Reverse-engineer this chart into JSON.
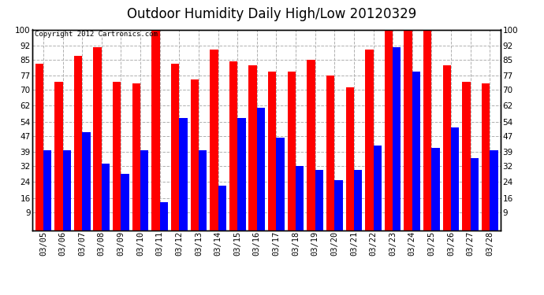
{
  "title": "Outdoor Humidity Daily High/Low 20120329",
  "copyright": "Copyright 2012 Cartronics.com",
  "dates": [
    "03/05",
    "03/06",
    "03/07",
    "03/08",
    "03/09",
    "03/10",
    "03/11",
    "03/12",
    "03/13",
    "03/14",
    "03/15",
    "03/16",
    "03/17",
    "03/18",
    "03/19",
    "03/20",
    "03/21",
    "03/22",
    "03/23",
    "03/24",
    "03/25",
    "03/26",
    "03/27",
    "03/28"
  ],
  "high": [
    83,
    74,
    87,
    91,
    74,
    73,
    100,
    83,
    75,
    90,
    84,
    82,
    79,
    79,
    85,
    77,
    71,
    90,
    100,
    100,
    100,
    82,
    74,
    73
  ],
  "low": [
    40,
    40,
    49,
    33,
    28,
    40,
    14,
    56,
    40,
    22,
    56,
    61,
    46,
    32,
    30,
    25,
    30,
    42,
    91,
    79,
    41,
    51,
    36,
    40
  ],
  "high_color": "#ff0000",
  "low_color": "#0000ff",
  "bg_color": "#ffffff",
  "plot_bg_color": "#ffffff",
  "grid_color": "#b0b0b0",
  "yticks": [
    9,
    16,
    24,
    32,
    39,
    47,
    54,
    62,
    70,
    77,
    85,
    92,
    100
  ],
  "ymin": 0,
  "ymax": 100,
  "title_fontsize": 12,
  "tick_fontsize": 7.5,
  "bar_width": 0.42
}
